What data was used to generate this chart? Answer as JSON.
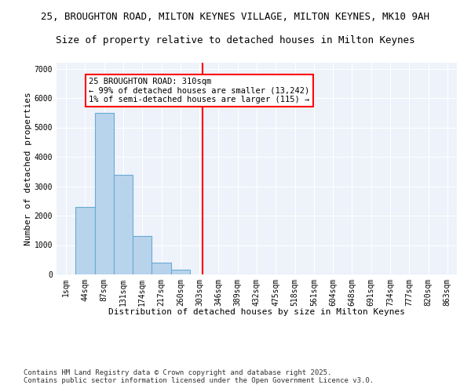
{
  "title_line1": "25, BROUGHTON ROAD, MILTON KEYNES VILLAGE, MILTON KEYNES, MK10 9AH",
  "title_line2": "Size of property relative to detached houses in Milton Keynes",
  "xlabel": "Distribution of detached houses by size in Milton Keynes",
  "ylabel": "Number of detached properties",
  "categories": [
    "1sqm",
    "44sqm",
    "87sqm",
    "131sqm",
    "174sqm",
    "217sqm",
    "260sqm",
    "303sqm",
    "346sqm",
    "389sqm",
    "432sqm",
    "475sqm",
    "518sqm",
    "561sqm",
    "604sqm",
    "648sqm",
    "691sqm",
    "734sqm",
    "777sqm",
    "820sqm",
    "863sqm"
  ],
  "values": [
    0,
    2300,
    5500,
    3400,
    1300,
    400,
    150,
    0,
    0,
    0,
    0,
    0,
    0,
    0,
    0,
    0,
    0,
    0,
    0,
    0,
    0
  ],
  "bar_color": "#b8d4ec",
  "bar_edge_color": "#6aaad4",
  "bar_width": 1.0,
  "vline_color": "red",
  "annotation_text": "25 BROUGHTON ROAD: 310sqm\n← 99% of detached houses are smaller (13,242)\n1% of semi-detached houses are larger (115) →",
  "ylim": [
    0,
    7200
  ],
  "yticks": [
    0,
    1000,
    2000,
    3000,
    4000,
    5000,
    6000,
    7000
  ],
  "background_color": "#eef2fa",
  "grid_color": "#ffffff",
  "footnote": "Contains HM Land Registry data © Crown copyright and database right 2025.\nContains public sector information licensed under the Open Government Licence v3.0.",
  "title_fontsize": 9,
  "subtitle_fontsize": 9,
  "axis_label_fontsize": 8,
  "tick_fontsize": 7,
  "annotation_fontsize": 7.5,
  "footnote_fontsize": 6.5
}
